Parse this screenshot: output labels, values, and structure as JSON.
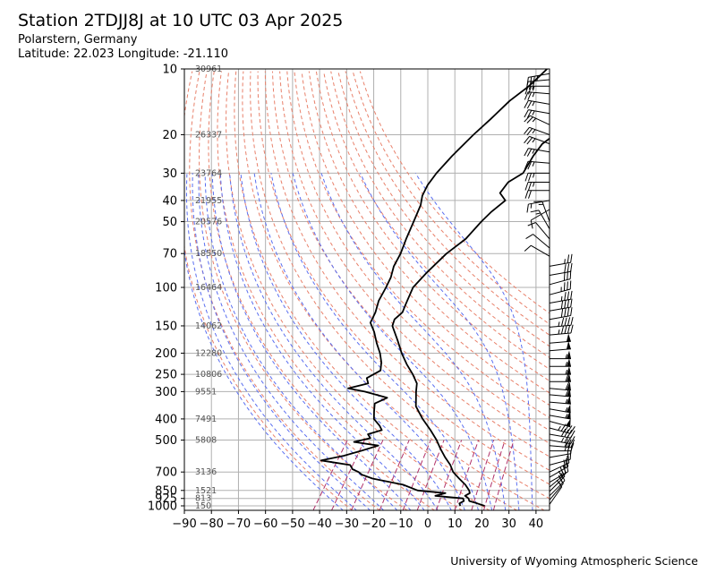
{
  "header": {
    "title": "Station 2TDJJ8J at 10 UTC 03 Apr 2025",
    "station_line": "Polarstern, Germany",
    "location_line": "Latitude: 22.023 Longitude: -21.110"
  },
  "footer": {
    "credit": "University of Wyoming Atmospheric Science"
  },
  "chart_data": {
    "type": "line",
    "chart_kind": "skew-T log-p sounding",
    "y_scale": "log",
    "x_ticks": [
      -90,
      -80,
      -70,
      -60,
      -50,
      -40,
      -30,
      -20,
      -10,
      0,
      10,
      20,
      30,
      40
    ],
    "y_ticks": [
      1000,
      925,
      850,
      700,
      500,
      400,
      300,
      250,
      200,
      150,
      100,
      70,
      50,
      40,
      30,
      20,
      10
    ],
    "xlim": [
      -90,
      45
    ],
    "ylim": [
      1050,
      10
    ],
    "grid": true,
    "colors": {
      "profile": "#000000",
      "dry_adiabat": "#e8806a",
      "moist_adiabat": "#5a6ef0",
      "mixing_ratio": "#b03068",
      "grid": "#b0b0b0"
    },
    "height_labels": [
      {
        "p": 10,
        "z": "30961"
      },
      {
        "p": 20,
        "z": "26337"
      },
      {
        "p": 30,
        "z": "23764"
      },
      {
        "p": 40,
        "z": "21955"
      },
      {
        "p": 50,
        "z": "20576"
      },
      {
        "p": 70,
        "z": "18550"
      },
      {
        "p": 100,
        "z": "16464"
      },
      {
        "p": 150,
        "z": "14062"
      },
      {
        "p": 200,
        "z": "12280"
      },
      {
        "p": 250,
        "z": "10806"
      },
      {
        "p": 300,
        "z": "9551"
      },
      {
        "p": 400,
        "z": "7491"
      },
      {
        "p": 500,
        "z": "5808"
      },
      {
        "p": 700,
        "z": "3136"
      },
      {
        "p": 850,
        "z": "1521"
      },
      {
        "p": 925,
        "z": "813"
      },
      {
        "p": 1000,
        "z": "150"
      }
    ],
    "temperature": [
      {
        "p": 1000,
        "t": 21
      },
      {
        "p": 970,
        "t": 17
      },
      {
        "p": 950,
        "t": 14
      },
      {
        "p": 925,
        "t": 13
      },
      {
        "p": 900,
        "t": 11
      },
      {
        "p": 875,
        "t": 12
      },
      {
        "p": 850,
        "t": 11
      },
      {
        "p": 800,
        "t": 8
      },
      {
        "p": 750,
        "t": 4
      },
      {
        "p": 700,
        "t": 0
      },
      {
        "p": 650,
        "t": -3
      },
      {
        "p": 600,
        "t": -7
      },
      {
        "p": 550,
        "t": -11
      },
      {
        "p": 500,
        "t": -15
      },
      {
        "p": 450,
        "t": -20
      },
      {
        "p": 400,
        "t": -26
      },
      {
        "p": 350,
        "t": -32
      },
      {
        "p": 300,
        "t": -36
      },
      {
        "p": 275,
        "t": -38
      },
      {
        "p": 250,
        "t": -42
      },
      {
        "p": 225,
        "t": -47
      },
      {
        "p": 200,
        "t": -52
      },
      {
        "p": 175,
        "t": -57
      },
      {
        "p": 150,
        "t": -63
      },
      {
        "p": 140,
        "t": -64
      },
      {
        "p": 130,
        "t": -63
      },
      {
        "p": 120,
        "t": -64
      },
      {
        "p": 100,
        "t": -66
      },
      {
        "p": 85,
        "t": -65
      },
      {
        "p": 70,
        "t": -63
      },
      {
        "p": 60,
        "t": -60
      },
      {
        "p": 50,
        "t": -59
      },
      {
        "p": 45,
        "t": -58
      },
      {
        "p": 40,
        "t": -56
      },
      {
        "p": 37,
        "t": -60
      },
      {
        "p": 33,
        "t": -60
      },
      {
        "p": 30,
        "t": -57
      },
      {
        "p": 25,
        "t": -58
      },
      {
        "p": 22,
        "t": -58
      },
      {
        "p": 20,
        "t": -56
      },
      {
        "p": 17,
        "t": -52
      },
      {
        "p": 15,
        "t": -48
      },
      {
        "p": 13,
        "t": -46
      },
      {
        "p": 12,
        "t": -44
      },
      {
        "p": 11,
        "t": -43
      },
      {
        "p": 10,
        "t": -37
      }
    ],
    "dewpoint": [
      {
        "p": 1000,
        "t": 12
      },
      {
        "p": 975,
        "t": 11
      },
      {
        "p": 950,
        "t": 12
      },
      {
        "p": 925,
        "t": 11
      },
      {
        "p": 900,
        "t": 0
      },
      {
        "p": 875,
        "t": 3
      },
      {
        "p": 850,
        "t": -8
      },
      {
        "p": 800,
        "t": -15
      },
      {
        "p": 750,
        "t": -28
      },
      {
        "p": 720,
        "t": -33
      },
      {
        "p": 700,
        "t": -35
      },
      {
        "p": 680,
        "t": -38
      },
      {
        "p": 650,
        "t": -40
      },
      {
        "p": 620,
        "t": -52
      },
      {
        "p": 590,
        "t": -45
      },
      {
        "p": 560,
        "t": -40
      },
      {
        "p": 530,
        "t": -35
      },
      {
        "p": 510,
        "t": -45
      },
      {
        "p": 490,
        "t": -40
      },
      {
        "p": 470,
        "t": -42
      },
      {
        "p": 450,
        "t": -38
      },
      {
        "p": 430,
        "t": -40
      },
      {
        "p": 400,
        "t": -44
      },
      {
        "p": 370,
        "t": -46
      },
      {
        "p": 340,
        "t": -48
      },
      {
        "p": 320,
        "t": -45
      },
      {
        "p": 300,
        "t": -55
      },
      {
        "p": 290,
        "t": -62
      },
      {
        "p": 275,
        "t": -56
      },
      {
        "p": 260,
        "t": -58
      },
      {
        "p": 240,
        "t": -55
      },
      {
        "p": 220,
        "t": -57
      },
      {
        "p": 200,
        "t": -60
      },
      {
        "p": 180,
        "t": -64
      },
      {
        "p": 160,
        "t": -68
      },
      {
        "p": 145,
        "t": -72
      },
      {
        "p": 130,
        "t": -73
      },
      {
        "p": 115,
        "t": -75
      },
      {
        "p": 100,
        "t": -76
      },
      {
        "p": 90,
        "t": -77
      },
      {
        "p": 80,
        "t": -79
      },
      {
        "p": 70,
        "t": -80
      },
      {
        "p": 60,
        "t": -82
      },
      {
        "p": 50,
        "t": -84
      },
      {
        "p": 42,
        "t": -86
      },
      {
        "p": 38,
        "t": -88
      },
      {
        "p": 34,
        "t": -89
      },
      {
        "p": 30,
        "t": -89
      },
      {
        "p": 25,
        "t": -88
      },
      {
        "p": 20,
        "t": -86
      },
      {
        "p": 17,
        "t": -84
      },
      {
        "p": 14,
        "t": -82
      },
      {
        "p": 12,
        "t": -79
      },
      {
        "p": 11,
        "t": -78
      },
      {
        "p": 10,
        "t": -77
      }
    ],
    "wind_barbs": [
      {
        "p": 985,
        "dir": 35,
        "spd": 12
      },
      {
        "p": 940,
        "dir": 40,
        "spd": 18
      },
      {
        "p": 900,
        "dir": 45,
        "spd": 20
      },
      {
        "p": 860,
        "dir": 45,
        "spd": 20
      },
      {
        "p": 820,
        "dir": 50,
        "spd": 22
      },
      {
        "p": 780,
        "dir": 60,
        "spd": 20
      },
      {
        "p": 740,
        "dir": 60,
        "spd": 20
      },
      {
        "p": 700,
        "dir": 65,
        "spd": 15
      },
      {
        "p": 650,
        "dir": 75,
        "spd": 18
      },
      {
        "p": 600,
        "dir": 80,
        "spd": 22
      },
      {
        "p": 560,
        "dir": 90,
        "spd": 30
      },
      {
        "p": 530,
        "dir": 95,
        "spd": 30
      },
      {
        "p": 500,
        "dir": 100,
        "spd": 35
      },
      {
        "p": 470,
        "dir": 100,
        "spd": 40
      },
      {
        "p": 440,
        "dir": 105,
        "spd": 45
      },
      {
        "p": 410,
        "dir": 105,
        "spd": 50
      },
      {
        "p": 385,
        "dir": 100,
        "spd": 55
      },
      {
        "p": 360,
        "dir": 100,
        "spd": 55
      },
      {
        "p": 335,
        "dir": 95,
        "spd": 55
      },
      {
        "p": 310,
        "dir": 95,
        "spd": 60
      },
      {
        "p": 290,
        "dir": 95,
        "spd": 60
      },
      {
        "p": 270,
        "dir": 90,
        "spd": 60
      },
      {
        "p": 250,
        "dir": 90,
        "spd": 55
      },
      {
        "p": 230,
        "dir": 90,
        "spd": 55
      },
      {
        "p": 212,
        "dir": 90,
        "spd": 55
      },
      {
        "p": 195,
        "dir": 85,
        "spd": 50
      },
      {
        "p": 180,
        "dir": 85,
        "spd": 50
      },
      {
        "p": 165,
        "dir": 85,
        "spd": 45
      },
      {
        "p": 152,
        "dir": 85,
        "spd": 45
      },
      {
        "p": 140,
        "dir": 80,
        "spd": 40
      },
      {
        "p": 128,
        "dir": 80,
        "spd": 40
      },
      {
        "p": 118,
        "dir": 80,
        "spd": 35
      },
      {
        "p": 108,
        "dir": 75,
        "spd": 35
      },
      {
        "p": 97,
        "dir": 75,
        "spd": 30
      },
      {
        "p": 88,
        "dir": 80,
        "spd": 30
      },
      {
        "p": 80,
        "dir": 80,
        "spd": 25
      },
      {
        "p": 72,
        "dir": 300,
        "spd": 10
      },
      {
        "p": 66,
        "dir": 310,
        "spd": 10
      },
      {
        "p": 60,
        "dir": 320,
        "spd": 12
      },
      {
        "p": 54,
        "dir": 330,
        "spd": 15
      },
      {
        "p": 50,
        "dir": 340,
        "spd": 15
      },
      {
        "p": 44,
        "dir": 240,
        "spd": 10
      },
      {
        "p": 40,
        "dir": 260,
        "spd": 15
      },
      {
        "p": 36,
        "dir": 270,
        "spd": 20
      },
      {
        "p": 33,
        "dir": 270,
        "spd": 25
      },
      {
        "p": 30,
        "dir": 270,
        "spd": 25
      },
      {
        "p": 27,
        "dir": 275,
        "spd": 25
      },
      {
        "p": 24,
        "dir": 280,
        "spd": 25
      },
      {
        "p": 22,
        "dir": 290,
        "spd": 25
      },
      {
        "p": 20,
        "dir": 290,
        "spd": 25
      },
      {
        "p": 18,
        "dir": 295,
        "spd": 25
      },
      {
        "p": 16,
        "dir": 280,
        "spd": 25
      },
      {
        "p": 14.5,
        "dir": 280,
        "spd": 25
      },
      {
        "p": 13,
        "dir": 275,
        "spd": 25
      },
      {
        "p": 12,
        "dir": 270,
        "spd": 25
      },
      {
        "p": 11.2,
        "dir": 265,
        "spd": 30
      },
      {
        "p": 10.5,
        "dir": 260,
        "spd": 35
      }
    ]
  }
}
